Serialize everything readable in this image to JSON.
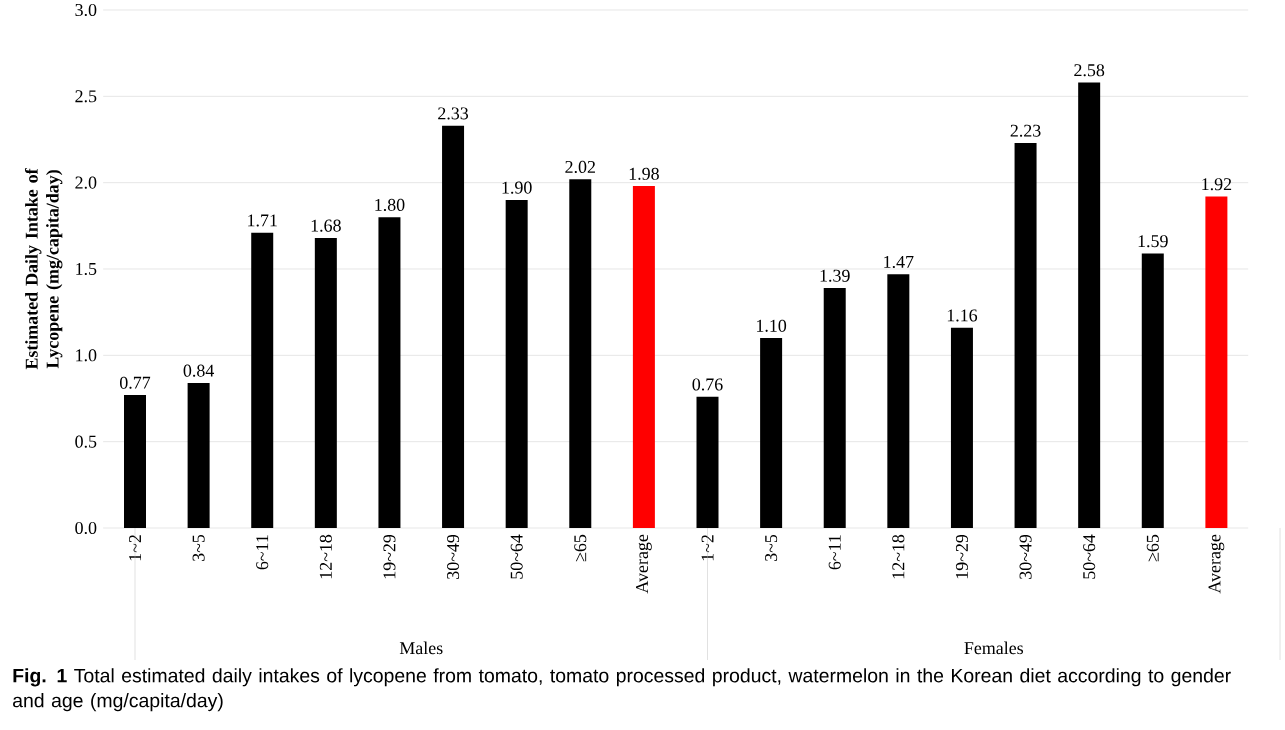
{
  "chart_data": {
    "type": "bar",
    "ylabel": "Estimated Daily Intake of Lycopene (mg/capita/day)",
    "categories": [
      "1~2",
      "3~5",
      "6~11",
      "12~18",
      "19~29",
      "30~49",
      "50~64",
      "≥65",
      "Average",
      "1~2",
      "3~5",
      "6~11",
      "12~18",
      "19~29",
      "30~49",
      "50~64",
      "≥65",
      "Average"
    ],
    "values": [
      0.77,
      0.84,
      1.71,
      1.68,
      1.8,
      2.33,
      1.9,
      2.02,
      1.98,
      0.76,
      1.1,
      1.39,
      1.47,
      1.16,
      2.23,
      2.58,
      1.59,
      1.92
    ],
    "value_labels": [
      "0.77",
      "0.84",
      "1.71",
      "1.68",
      "1.80",
      "2.33",
      "1.90",
      "2.02",
      "1.98",
      "0.76",
      "1.10",
      "1.39",
      "1.47",
      "1.16",
      "2.23",
      "2.58",
      "1.59",
      "1.92"
    ],
    "colors": [
      "#000000",
      "#000000",
      "#000000",
      "#000000",
      "#000000",
      "#000000",
      "#000000",
      "#000000",
      "#ff0000",
      "#000000",
      "#000000",
      "#000000",
      "#000000",
      "#000000",
      "#000000",
      "#000000",
      "#000000",
      "#ff0000"
    ],
    "ylim": [
      0,
      3
    ],
    "yticks": [
      {
        "value": 0,
        "label": "0.0"
      },
      {
        "value": 0.5,
        "label": "0.5"
      },
      {
        "value": 1,
        "label": "1.0"
      },
      {
        "value": 1.5,
        "label": "1.5"
      },
      {
        "value": 2,
        "label": "2.0"
      },
      {
        "value": 2.5,
        "label": "2.5"
      },
      {
        "value": 3,
        "label": "3.0"
      }
    ],
    "grid": "y",
    "annotations": [
      "Males",
      "Females",
      "**Fig. 1** Total estimated daily intakes of lycopene from tomato, tomato processed product, watermelon in the Korean diet according to gender and age (mg/capita/day)"
    ]
  }
}
